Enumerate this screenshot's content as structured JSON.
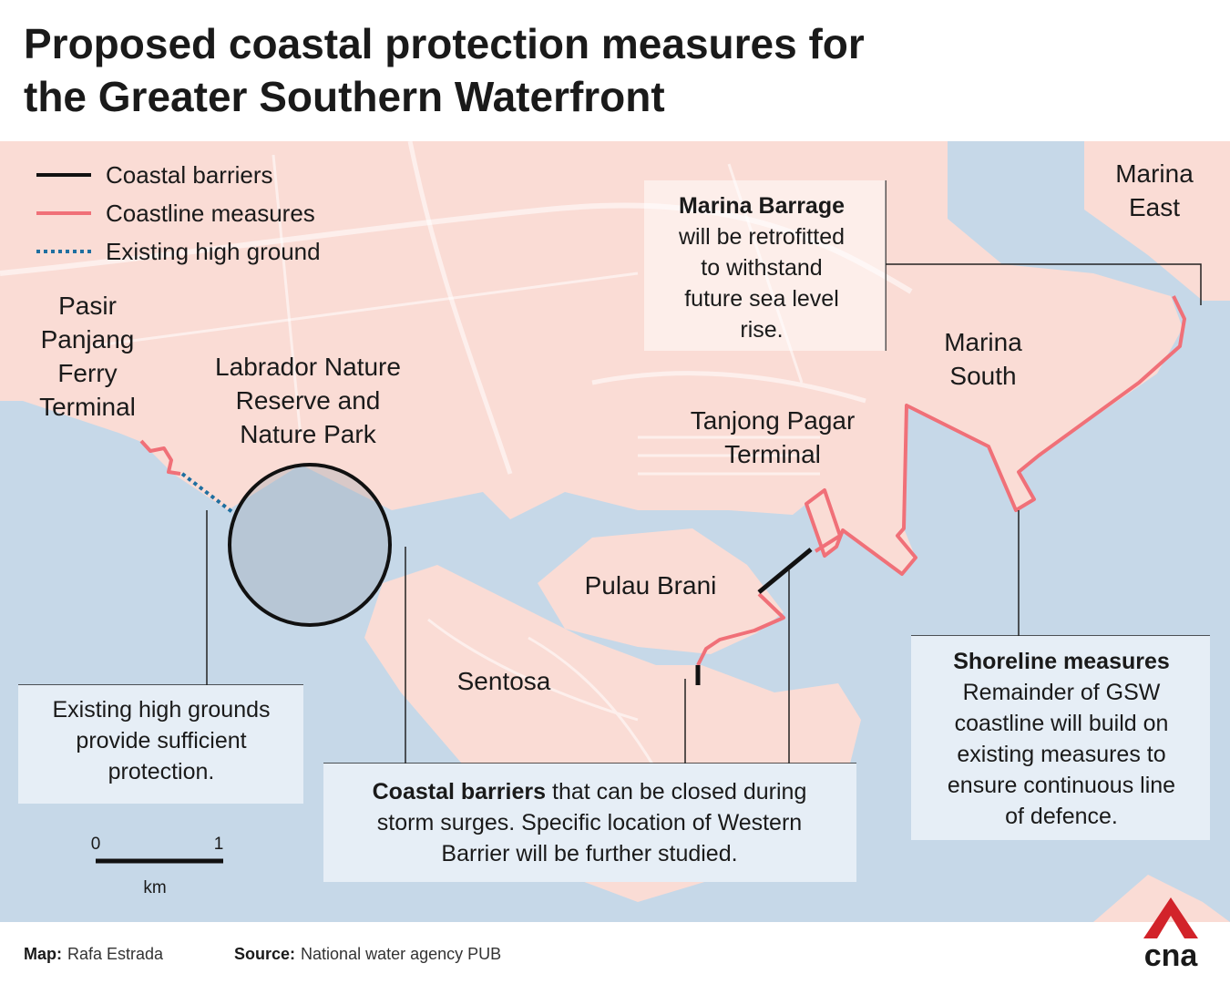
{
  "title": [
    "Proposed coastal protection measures for",
    "the Greater Southern Waterfront"
  ],
  "legend": [
    {
      "label": "Coastal barriers"
    },
    {
      "label": "Coastline measures"
    },
    {
      "label": "Existing high ground"
    }
  ],
  "places": [
    {
      "lines": [
        "Pasir",
        "Panjang",
        "Ferry",
        "Terminal"
      ]
    },
    {
      "lines": [
        "Labrador Nature",
        "Reserve and",
        "Nature Park"
      ]
    },
    {
      "lines": [
        "Tanjong Pagar",
        "Terminal"
      ]
    },
    {
      "lines": [
        "Marina",
        "South"
      ]
    },
    {
      "lines": [
        "Marina",
        "East"
      ]
    },
    {
      "lines": [
        "Pulau Brani"
      ]
    },
    {
      "lines": [
        "Sentosa"
      ]
    }
  ],
  "callouts": {
    "marina_barrage": {
      "bold": "Marina Barrage",
      "lines": [
        "will be retrofitted",
        "to withstand",
        "future sea level",
        "rise."
      ]
    },
    "high_grounds": {
      "lines": [
        "Existing high grounds",
        "provide sufficient",
        "protection."
      ]
    },
    "coastal_barriers": {
      "bold": "Coastal barriers",
      "lines": [
        "that can be closed during",
        "storm surges. Specific location of Western",
        "Barrier will be further studied."
      ]
    },
    "shoreline": {
      "bold": "Shoreline measures",
      "lines": [
        "Remainder of GSW",
        "coastline will build on",
        "existing measures to",
        "ensure continuous line",
        "of defence."
      ]
    }
  },
  "scale": {
    "ticks": [
      0,
      1
    ],
    "unit": "km"
  },
  "footer": {
    "map_label": "Map:",
    "map_credit": "Rafa Estrada",
    "source_label": "Source:",
    "source": "National water agency PUB"
  },
  "logo": "cna"
}
